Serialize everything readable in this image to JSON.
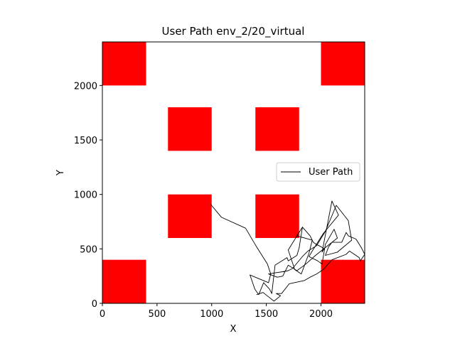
{
  "chart_data": {
    "type": "line",
    "title": "User Path env_2/20_virtual",
    "xlabel": "X",
    "ylabel": "Y",
    "xlim": [
      0,
      2400
    ],
    "ylim": [
      0,
      2400
    ],
    "xticks": [
      0,
      500,
      1000,
      1500,
      2000
    ],
    "yticks": [
      0,
      500,
      1000,
      1500,
      2000
    ],
    "grid": false,
    "legend": {
      "placement": "center-right",
      "entries": [
        "User Path"
      ]
    },
    "obstacle_color": "#ff0000",
    "obstacles": [
      {
        "x": [
          0,
          400
        ],
        "y": [
          2000,
          2400
        ]
      },
      {
        "x": [
          2000,
          2400
        ],
        "y": [
          2000,
          2400
        ]
      },
      {
        "x": [
          600,
          1000
        ],
        "y": [
          1400,
          1800
        ]
      },
      {
        "x": [
          1400,
          1800
        ],
        "y": [
          1400,
          1800
        ]
      },
      {
        "x": [
          600,
          1000
        ],
        "y": [
          600,
          1000
        ]
      },
      {
        "x": [
          1400,
          1800
        ],
        "y": [
          600,
          1000
        ]
      },
      {
        "x": [
          0,
          400
        ],
        "y": [
          0,
          400
        ]
      },
      {
        "x": [
          2000,
          2400
        ],
        "y": [
          0,
          400
        ]
      }
    ],
    "series": [
      {
        "name": "User Path",
        "color": "#000000",
        "x": [
          990,
          1090,
          1310,
          1410,
          1510,
          1540,
          1520,
          1350,
          1395,
          1430,
          1475,
          1530,
          1550,
          1580,
          1690,
          1700,
          1780,
          1800,
          1830,
          1700,
          1760,
          1820,
          1890,
          1920,
          1780,
          1830,
          1900,
          1930,
          1960,
          2000,
          2030,
          2010,
          2100,
          2160,
          2020,
          1920,
          1890,
          1970,
          2010,
          2040,
          2120,
          2150,
          1950,
          1860,
          1780,
          1700,
          1650,
          1600,
          1520,
          1580,
          1650,
          1700,
          1740,
          1830,
          1880,
          1960,
          2040,
          2140,
          2250,
          2280,
          2150,
          2040,
          2070,
          2100,
          2190,
          2230,
          2250,
          2320,
          2370,
          2400,
          2380,
          2360,
          2350,
          2260,
          2230,
          2100,
          2020,
          1960,
          1900,
          1850,
          1710,
          1640,
          1590,
          1630,
          1570,
          1520,
          1470,
          1440,
          1410
        ],
        "y": [
          910,
          790,
          690,
          520,
          360,
          270,
          190,
          260,
          130,
          80,
          190,
          130,
          90,
          350,
          420,
          390,
          440,
          510,
          700,
          490,
          310,
          270,
          460,
          580,
          620,
          700,
          620,
          560,
          540,
          520,
          500,
          470,
          940,
          810,
          640,
          480,
          430,
          390,
          360,
          540,
          680,
          600,
          440,
          360,
          300,
          350,
          250,
          240,
          270,
          280,
          290,
          300,
          320,
          430,
          480,
          530,
          660,
          900,
          760,
          580,
          470,
          440,
          520,
          560,
          560,
          650,
          620,
          590,
          510,
          450,
          420,
          390,
          420,
          480,
          450,
          400,
          310,
          270,
          240,
          210,
          180,
          90,
          90,
          70,
          20,
          60,
          100,
          90,
          80
        ]
      }
    ]
  }
}
